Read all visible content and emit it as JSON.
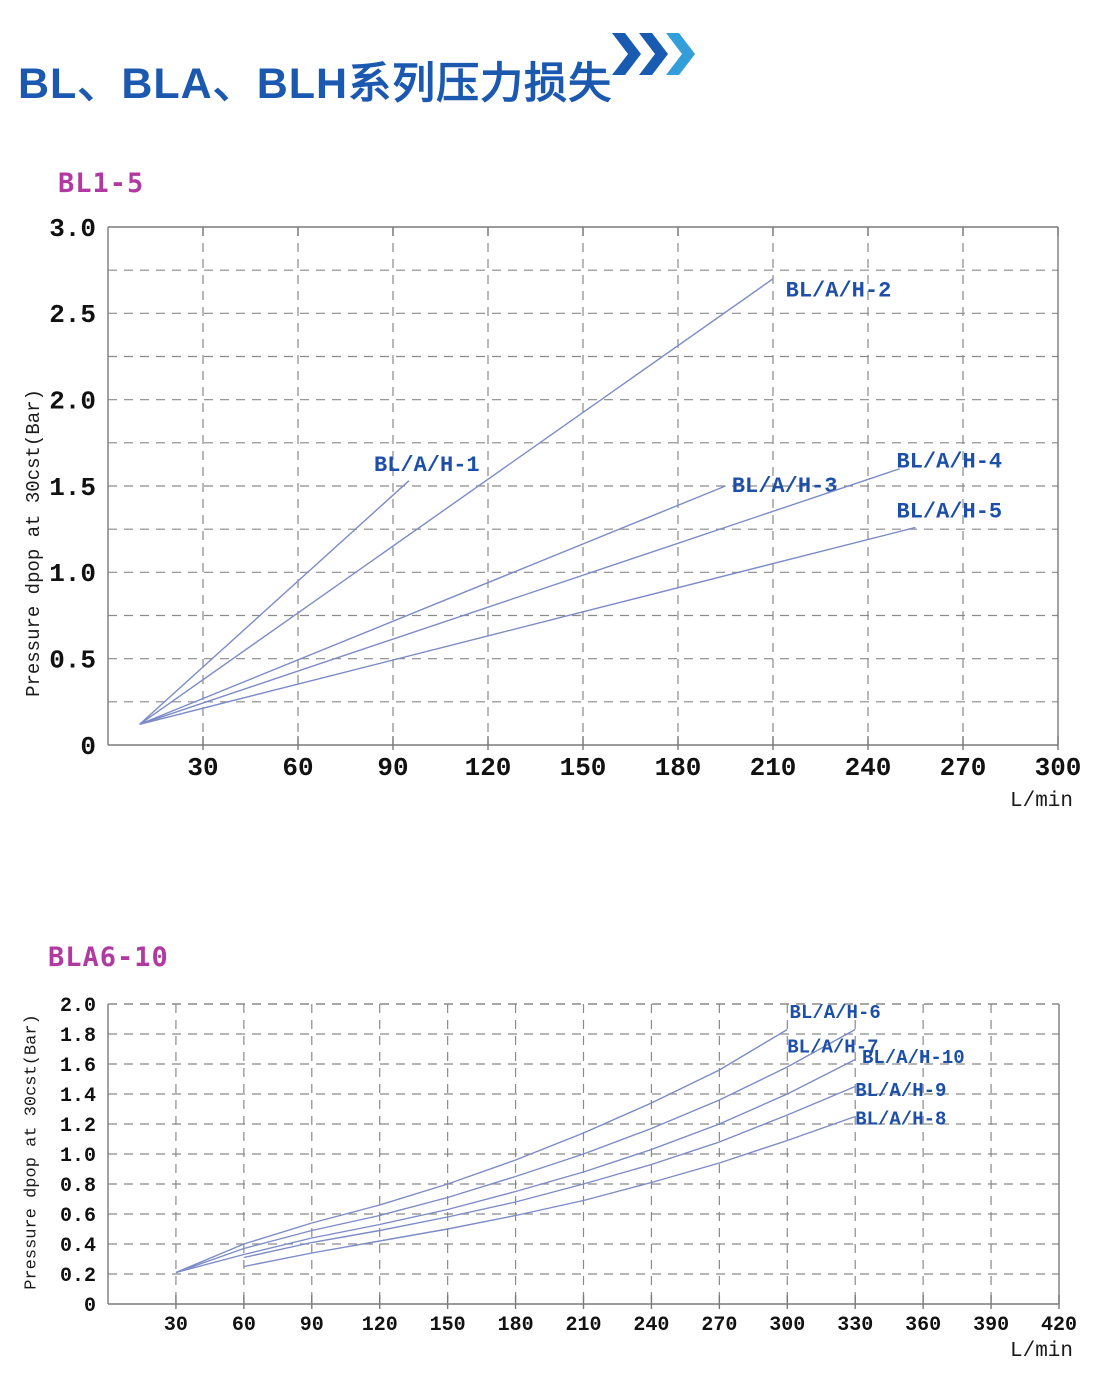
{
  "header": {
    "title": "BL、BLA、BLH系列压力损失",
    "title_color": "#1b58b0",
    "chevrons_icon_colors": [
      "#1a5bb2",
      "#1a5bb2",
      "#339ed9"
    ]
  },
  "chart_data": [
    {
      "type": "line",
      "subtitle": "BL1-5",
      "subtitle_color": "#b13aa2",
      "ylabel": "Pressure dpop at 30cst(Bar)",
      "xlabel": "",
      "xunit": "L/min",
      "xlim": [
        0,
        300
      ],
      "ylim": [
        0,
        3.0
      ],
      "grid": "dashed",
      "legend_position": "inline-labels",
      "x_tick_values": [
        30,
        60,
        90,
        120,
        150,
        180,
        210,
        240,
        270,
        300
      ],
      "x_tick_labels": [
        "30",
        "60",
        "90",
        "120",
        "150",
        "180",
        "210",
        "240",
        "270",
        "300"
      ],
      "y_tick_values": [
        3.0,
        2.5,
        2.0,
        1.5,
        1.0,
        0.5,
        0
      ],
      "y_tick_labels": [
        "3.0",
        "2.5",
        "2.0",
        "1.5",
        "1.0",
        "0.5",
        "0"
      ],
      "y_grid_step": 0.25,
      "line_color": "#7b8cc7",
      "label_color": "#1d4fa8",
      "grid_color": "#8a8a8a",
      "series": [
        {
          "name": "BL/A/H-1",
          "points": [
            [
              10,
              0.12
            ],
            [
              95,
              1.53
            ]
          ],
          "label_at": [
            84,
            1.63
          ]
        },
        {
          "name": "BL/A/H-2",
          "points": [
            [
              10,
              0.12
            ],
            [
              210,
              2.7
            ]
          ],
          "label_at": [
            214,
            2.64
          ]
        },
        {
          "name": "BL/A/H-3",
          "points": [
            [
              10,
              0.12
            ],
            [
              195,
              1.5
            ]
          ],
          "label_at": [
            197,
            1.51
          ]
        },
        {
          "name": "BL/A/H-4",
          "points": [
            [
              10,
              0.12
            ],
            [
              250,
              1.6
            ]
          ],
          "label_at": [
            249,
            1.65
          ]
        },
        {
          "name": "BL/A/H-5",
          "points": [
            [
              10,
              0.12
            ],
            [
              255,
              1.26
            ]
          ],
          "label_at": [
            249,
            1.36
          ]
        }
      ]
    },
    {
      "type": "line",
      "subtitle": "BLA6-10",
      "subtitle_color": "#b13aa2",
      "ylabel": "Pressure dpop at 30cst(Bar)",
      "xlabel": "",
      "xunit": "L/min",
      "xlim": [
        0,
        420
      ],
      "ylim": [
        0,
        2.0
      ],
      "grid": "dashed",
      "legend_position": "inline-labels",
      "x_tick_values": [
        30,
        60,
        90,
        120,
        150,
        180,
        210,
        240,
        270,
        300,
        330,
        360,
        390,
        420
      ],
      "x_tick_labels": [
        "30",
        "60",
        "90",
        "120",
        "150",
        "180",
        "210",
        "240",
        "270",
        "300",
        "330",
        "360",
        "390",
        "420"
      ],
      "y_tick_values": [
        2.0,
        1.8,
        1.6,
        1.4,
        1.2,
        1.0,
        0.8,
        0.6,
        0.4,
        0.2,
        0
      ],
      "y_tick_labels": [
        "2.0",
        "1.8",
        "1.6",
        "1.4",
        "1.2",
        "1.0",
        "0.8",
        "0.6",
        "0.4",
        "0.2",
        "0"
      ],
      "y_grid_step": 0.2,
      "line_color": "#7b8cc7",
      "label_color": "#1d4fa8",
      "grid_color": "#8a8a8a",
      "series": [
        {
          "name": "BL/A/H-6",
          "points": [
            [
              30,
              0.21
            ],
            [
              60,
              0.4
            ],
            [
              90,
              0.54
            ],
            [
              120,
              0.66
            ],
            [
              150,
              0.8
            ],
            [
              180,
              0.96
            ],
            [
              210,
              1.14
            ],
            [
              240,
              1.34
            ],
            [
              270,
              1.56
            ],
            [
              300,
              1.83
            ]
          ],
          "label_at": [
            301,
            1.95
          ]
        },
        {
          "name": "BL/A/H-7",
          "points": [
            [
              30,
              0.21
            ],
            [
              60,
              0.37
            ],
            [
              90,
              0.49
            ],
            [
              120,
              0.59
            ],
            [
              150,
              0.71
            ],
            [
              180,
              0.85
            ],
            [
              210,
              1.0
            ],
            [
              240,
              1.17
            ],
            [
              270,
              1.36
            ],
            [
              300,
              1.58
            ],
            [
              330,
              1.83
            ]
          ],
          "label_at": [
            300,
            1.72
          ]
        },
        {
          "name": "BL/A/H-10",
          "points": [
            [
              30,
              0.21
            ],
            [
              60,
              0.33
            ],
            [
              90,
              0.44
            ],
            [
              120,
              0.53
            ],
            [
              150,
              0.63
            ],
            [
              180,
              0.75
            ],
            [
              210,
              0.88
            ],
            [
              240,
              1.03
            ],
            [
              270,
              1.2
            ],
            [
              300,
              1.4
            ],
            [
              330,
              1.63
            ]
          ],
          "label_at": [
            333,
            1.65
          ]
        },
        {
          "name": "BL/A/H-9",
          "points": [
            [
              60,
              0.31
            ],
            [
              90,
              0.41
            ],
            [
              120,
              0.49
            ],
            [
              150,
              0.58
            ],
            [
              180,
              0.68
            ],
            [
              210,
              0.8
            ],
            [
              240,
              0.93
            ],
            [
              270,
              1.08
            ],
            [
              300,
              1.26
            ],
            [
              330,
              1.45
            ]
          ],
          "label_at": [
            330,
            1.43
          ]
        },
        {
          "name": "BL/A/H-8",
          "points": [
            [
              60,
              0.25
            ],
            [
              90,
              0.34
            ],
            [
              120,
              0.42
            ],
            [
              150,
              0.5
            ],
            [
              180,
              0.59
            ],
            [
              210,
              0.69
            ],
            [
              240,
              0.81
            ],
            [
              270,
              0.94
            ],
            [
              300,
              1.09
            ],
            [
              330,
              1.25
            ]
          ],
          "label_at": [
            330,
            1.24
          ]
        }
      ]
    }
  ]
}
